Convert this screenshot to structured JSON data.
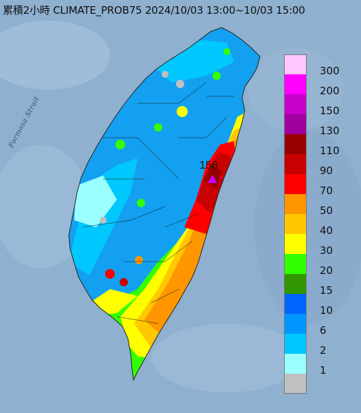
{
  "title": "累積2小時 CLIMATE_PROB75 2024/10/03 13:00~10/03 15:00",
  "strait_label": "Formosa Strait",
  "max_value": "156",
  "colors": {
    "sea": "#8fb0cf",
    "land_low": "#14a0f0",
    "mountain": "#ff9b00"
  },
  "legend": [
    {
      "label": "300",
      "color": "#ffc8ff"
    },
    {
      "label": "200",
      "color": "#ff00ff"
    },
    {
      "label": "150",
      "color": "#c800c8"
    },
    {
      "label": "130",
      "color": "#a000a0"
    },
    {
      "label": "110",
      "color": "#960000"
    },
    {
      "label": "90",
      "color": "#c80000"
    },
    {
      "label": "70",
      "color": "#ff0000"
    },
    {
      "label": "50",
      "color": "#ff9600"
    },
    {
      "label": "40",
      "color": "#ffc800"
    },
    {
      "label": "30",
      "color": "#ffff00"
    },
    {
      "label": "20",
      "color": "#32ff00"
    },
    {
      "label": "15",
      "color": "#329600"
    },
    {
      "label": "10",
      "color": "#0064ff"
    },
    {
      "label": "6",
      "color": "#0096ff"
    },
    {
      "label": "2",
      "color": "#00c8ff"
    },
    {
      "label": "1",
      "color": "#9bffff"
    },
    {
      "label": "",
      "color": "#c0c0c0"
    }
  ]
}
